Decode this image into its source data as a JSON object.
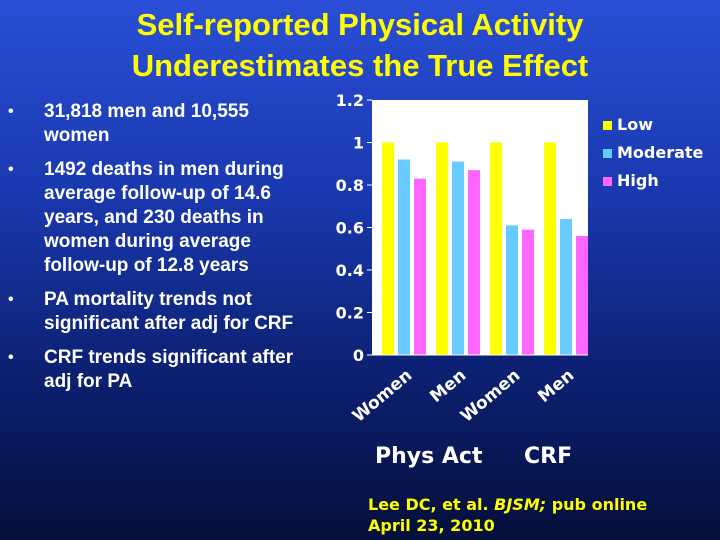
{
  "slide": {
    "title_line1": "Self-reported Physical Activity",
    "title_line2": "Underestimates the True Effect",
    "bullets": [
      "31,818 men and 10,555 women",
      "1492  deaths in men during average follow-up of 14.6 years, and 230 deaths in women during average follow-up of 12.8 years",
      "PA mortality trends not significant after adj for CRF",
      "CRF trends significant after adj for PA"
    ],
    "bullet_glyph": "•",
    "group_label_left": "Phys Act",
    "group_label_right": "CRF",
    "citation_prefix": "Lee DC, et al. ",
    "citation_journal": "BJSM;",
    "citation_suffix": " pub online",
    "citation_line2": "April 23, 2010"
  },
  "colors": {
    "title": "#ffff00",
    "citation": "#ffff00",
    "text": "#ffffff",
    "plot_bg": "#ffffff",
    "Low": "#ffff00",
    "Moderate": "#66ccff",
    "High": "#ff66ff"
  },
  "chart_data": {
    "type": "bar",
    "categories": [
      "Women",
      "Men",
      "Women",
      "Men"
    ],
    "series": [
      {
        "name": "Low",
        "values": [
          1.0,
          1.0,
          1.0,
          1.0
        ]
      },
      {
        "name": "Moderate",
        "values": [
          0.92,
          0.91,
          0.61,
          0.64
        ]
      },
      {
        "name": "High",
        "values": [
          0.83,
          0.87,
          0.59,
          0.56
        ]
      }
    ],
    "ylim": [
      0,
      1.2
    ],
    "yticks": [
      "0",
      "0.2",
      "0.4",
      "0.6",
      "0.8",
      "1",
      "1.2"
    ],
    "grid": false,
    "legend_position": "right"
  }
}
